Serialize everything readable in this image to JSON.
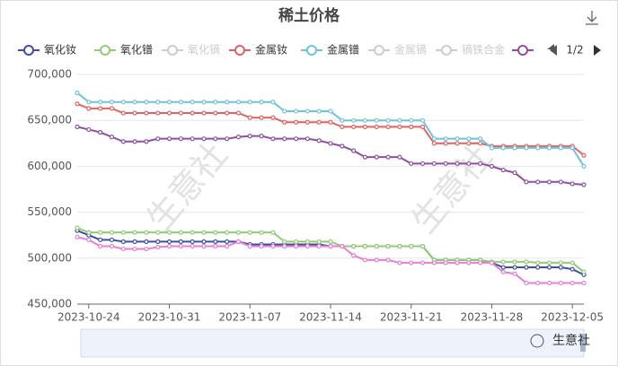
{
  "chart_data": {
    "type": "line",
    "title": "稀土价格",
    "watermark": "生意社",
    "brand": "生意社",
    "legend_page": "1/2",
    "categories": [
      null,
      "2023-10-24",
      null,
      null,
      null,
      null,
      null,
      null,
      "2023-10-31",
      null,
      null,
      null,
      null,
      null,
      null,
      "2023-11-07",
      null,
      null,
      null,
      null,
      null,
      null,
      "2023-11-14",
      null,
      null,
      null,
      null,
      null,
      null,
      "2023-11-21",
      null,
      null,
      null,
      null,
      null,
      null,
      "2023-11-28",
      null,
      null,
      null,
      null,
      null,
      null,
      "2023-12-05",
      null
    ],
    "ylim": [
      450000,
      700000
    ],
    "yticks": [
      {
        "value": 450000,
        "label": "450,000"
      },
      {
        "value": 500000,
        "label": "500,000"
      },
      {
        "value": 550000,
        "label": "550,000"
      },
      {
        "value": 600000,
        "label": "600,000"
      },
      {
        "value": 650000,
        "label": "650,000"
      },
      {
        "value": 700000,
        "label": "700,000"
      }
    ],
    "grid": true,
    "series": [
      {
        "name": "氧化钕",
        "color": "#3d4fa0",
        "values": [
          530000,
          525000,
          520000,
          520000,
          518000,
          518000,
          518000,
          518000,
          518000,
          518000,
          518000,
          518000,
          518000,
          518000,
          518000,
          515000,
          515000,
          515000,
          515000,
          515000,
          515000,
          515000,
          513000,
          513000,
          513000,
          513000,
          513000,
          513000,
          513000,
          513000,
          513000,
          498000,
          498000,
          498000,
          498000,
          498000,
          495000,
          490000,
          490000,
          490000,
          490000,
          490000,
          490000,
          488000,
          482000
        ]
      },
      {
        "name": "氧化镨",
        "color": "#91cc75",
        "values": [
          533000,
          528000,
          528000,
          528000,
          528000,
          528000,
          528000,
          528000,
          528000,
          528000,
          528000,
          528000,
          528000,
          528000,
          528000,
          528000,
          528000,
          528000,
          518000,
          518000,
          518000,
          518000,
          518000,
          513000,
          513000,
          513000,
          513000,
          513000,
          513000,
          513000,
          513000,
          498000,
          498000,
          498000,
          498000,
          498000,
          496000,
          496000,
          496000,
          496000,
          495000,
          495000,
          495000,
          495000,
          485000
        ]
      },
      {
        "name": "氧化镝",
        "color": "#cccccc",
        "shown": false
      },
      {
        "name": "金属钕",
        "color": "#e06363",
        "values": [
          668000,
          663000,
          663000,
          663000,
          658000,
          658000,
          658000,
          658000,
          658000,
          658000,
          658000,
          658000,
          658000,
          658000,
          658000,
          653000,
          653000,
          653000,
          648000,
          648000,
          648000,
          648000,
          648000,
          643000,
          643000,
          643000,
          643000,
          643000,
          643000,
          643000,
          643000,
          625000,
          625000,
          625000,
          625000,
          625000,
          622000,
          622000,
          622000,
          622000,
          622000,
          622000,
          622000,
          622000,
          612000
        ]
      },
      {
        "name": "金属镨",
        "color": "#6fc3d9",
        "values": [
          680000,
          670000,
          670000,
          670000,
          670000,
          670000,
          670000,
          670000,
          670000,
          670000,
          670000,
          670000,
          670000,
          670000,
          670000,
          670000,
          670000,
          670000,
          660000,
          660000,
          660000,
          660000,
          660000,
          650000,
          650000,
          650000,
          650000,
          650000,
          650000,
          650000,
          650000,
          630000,
          630000,
          630000,
          630000,
          630000,
          620000,
          620000,
          620000,
          620000,
          620000,
          620000,
          620000,
          620000,
          600000
        ]
      },
      {
        "name": "金属镝",
        "color": "#cccccc",
        "shown": false
      },
      {
        "name": "镝铁合金",
        "color": "#cccccc",
        "shown": false
      },
      {
        "color": "#8e4fa0",
        "values": [
          643000,
          640000,
          637000,
          632000,
          627000,
          627000,
          627000,
          630000,
          630000,
          630000,
          630000,
          630000,
          630000,
          630000,
          632000,
          633000,
          633000,
          630000,
          630000,
          630000,
          630000,
          628000,
          625000,
          622000,
          617000,
          610000,
          610000,
          610000,
          610000,
          603000,
          603000,
          603000,
          603000,
          603000,
          603000,
          603000,
          600000,
          596000,
          593000,
          583000,
          583000,
          583000,
          583000,
          581000,
          580000
        ]
      },
      {
        "color": "#e77fd1",
        "values": [
          523000,
          520000,
          513000,
          513000,
          510000,
          510000,
          510000,
          512000,
          513000,
          513000,
          513000,
          513000,
          513000,
          513000,
          518000,
          513000,
          513000,
          513000,
          513000,
          513000,
          513000,
          513000,
          513000,
          513000,
          503000,
          498000,
          498000,
          498000,
          495000,
          495000,
          495000,
          495000,
          495000,
          495000,
          495000,
          495000,
          495000,
          485000,
          483000,
          473000,
          473000,
          473000,
          473000,
          473000,
          473000
        ]
      }
    ]
  }
}
